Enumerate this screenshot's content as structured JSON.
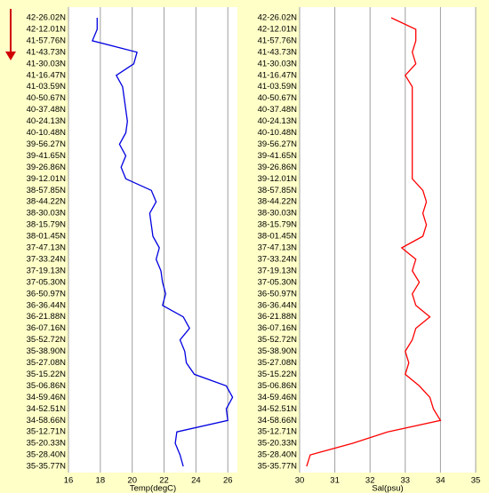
{
  "chart_data": [
    {
      "type": "line",
      "orientation": "horizontal",
      "xlabel": "Temp(degC)",
      "categories": [
        "42-26.02N",
        "42-12.01N",
        "41-57.76N",
        "41-43.73N",
        "41-30.03N",
        "41-16.47N",
        "41-03.59N",
        "40-50.67N",
        "40-37.48N",
        "40-24.13N",
        "40-10.48N",
        "39-56.27N",
        "39-41.65N",
        "39-26.86N",
        "39-12.01N",
        "38-57.85N",
        "38-44.22N",
        "38-30.03N",
        "38-15.79N",
        "38-01.45N",
        "37-47.13N",
        "37-33.24N",
        "37-19.13N",
        "37-05.30N",
        "36-50.97N",
        "36-36.44N",
        "36-21.88N",
        "36-07.16N",
        "35-52.72N",
        "35-38.90N",
        "35-27.08N",
        "35-15.22N",
        "35-06.86N",
        "34-59.46N",
        "34-52.51N",
        "34-58.66N",
        "35-12.71N",
        "35-20.33N",
        "35-28.40N",
        "35-35.77N"
      ],
      "series": [
        {
          "color": "#0000e0",
          "values": [
            17.8,
            17.8,
            17.5,
            20.3,
            20.1,
            19.0,
            19.4,
            19.5,
            19.6,
            19.7,
            19.6,
            19.2,
            19.6,
            19.3,
            19.6,
            21.2,
            21.5,
            21.1,
            21.2,
            21.3,
            21.7,
            21.5,
            21.8,
            21.9,
            22.1,
            21.9,
            23.2,
            23.6,
            23.0,
            23.3,
            23.4,
            23.9,
            25.9,
            26.3,
            25.9,
            26.0,
            22.8,
            22.7,
            23.0,
            23.2
          ]
        }
      ],
      "xlim": [
        16,
        26.6
      ],
      "xticks": [
        16,
        18,
        20,
        22,
        24,
        26
      ],
      "grid": true
    },
    {
      "type": "line",
      "orientation": "horizontal",
      "xlabel": "Sal(psu)",
      "categories": [
        "42-26.02N",
        "42-12.01N",
        "41-57.76N",
        "41-43.73N",
        "41-30.03N",
        "41-16.47N",
        "41-03.59N",
        "40-50.67N",
        "40-37.48N",
        "40-24.13N",
        "40-10.48N",
        "39-56.27N",
        "39-41.65N",
        "39-26.86N",
        "39-12.01N",
        "38-57.85N",
        "38-44.22N",
        "38-30.03N",
        "38-15.79N",
        "38-01.45N",
        "37-47.13N",
        "37-33.24N",
        "37-19.13N",
        "37-05.30N",
        "36-50.97N",
        "36-36.44N",
        "36-21.88N",
        "36-07.16N",
        "35-52.72N",
        "35-38.90N",
        "35-27.08N",
        "35-15.22N",
        "35-06.86N",
        "34-59.46N",
        "34-52.51N",
        "34-58.66N",
        "35-12.71N",
        "35-20.33N",
        "35-28.40N",
        "35-35.77N"
      ],
      "series": [
        {
          "color": "#ff0000",
          "values": [
            32.6,
            33.3,
            33.3,
            33.2,
            33.3,
            33.0,
            33.2,
            33.2,
            33.2,
            33.2,
            33.2,
            33.2,
            33.2,
            33.2,
            33.2,
            33.5,
            33.6,
            33.5,
            33.6,
            33.5,
            32.9,
            33.3,
            33.2,
            33.4,
            33.2,
            33.3,
            33.7,
            33.3,
            33.2,
            33.0,
            33.1,
            33.0,
            33.4,
            33.7,
            33.8,
            34.0,
            32.5,
            31.5,
            30.3,
            30.2
          ]
        }
      ],
      "xlim": [
        30,
        35
      ],
      "xticks": [
        30,
        31,
        32,
        33,
        34,
        35
      ],
      "grid": true
    }
  ]
}
